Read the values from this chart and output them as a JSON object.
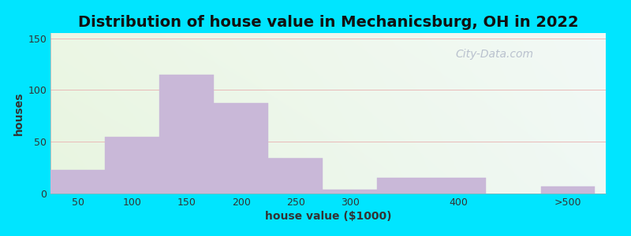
{
  "title": "Distribution of house value in Mechanicsburg, OH in 2022",
  "xlabel": "house value ($1000)",
  "ylabel": "houses",
  "bar_color": "#c9b8d8",
  "bar_edgecolor": "#c9b8d8",
  "background_outer": "#00e5ff",
  "bar_values": [
    23,
    55,
    115,
    87,
    34,
    4,
    15,
    7
  ],
  "bar_left_edges": [
    25,
    75,
    125,
    175,
    225,
    275,
    325,
    475
  ],
  "bar_widths": [
    50,
    50,
    50,
    50,
    50,
    50,
    100,
    50
  ],
  "xtick_positions": [
    50,
    100,
    150,
    200,
    250,
    300,
    400,
    500
  ],
  "xtick_labels": [
    "50",
    "100",
    "150",
    "200",
    "250",
    "300",
    "400",
    ">500"
  ],
  "ytick_positions": [
    0,
    50,
    100,
    150
  ],
  "ytick_labels": [
    "0",
    "50",
    "100",
    "150"
  ],
  "ylim": [
    0,
    155
  ],
  "xlim": [
    25,
    535
  ],
  "grid_color": "#e8b0b0",
  "title_fontsize": 14,
  "axis_label_fontsize": 10,
  "tick_fontsize": 9,
  "watermark_text": "City-Data.com",
  "watermark_color": "#b0b8c8",
  "bg_color_topleft": "#e8f5e0",
  "bg_color_topright": "#eef4f0",
  "bg_color_bottomleft": "#d8f0d0",
  "bg_color_bottomright": "#e8f8f0"
}
